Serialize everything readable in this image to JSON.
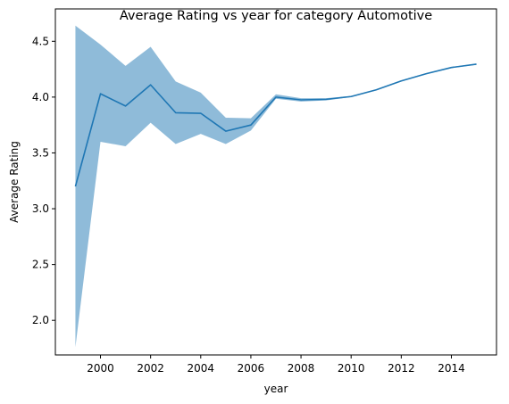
{
  "chart_data": {
    "type": "line",
    "title": "Average Rating vs year for category Automotive",
    "xlabel": "year",
    "ylabel": "Average Rating",
    "xlim": [
      1998.2,
      2015.8
    ],
    "ylim": [
      1.69,
      4.79
    ],
    "x_ticks": [
      2000,
      2002,
      2004,
      2006,
      2008,
      2010,
      2012,
      2014
    ],
    "y_ticks": [
      2.0,
      2.5,
      3.0,
      3.5,
      4.0,
      4.5
    ],
    "x_tick_labels": [
      "2000",
      "2002",
      "2004",
      "2006",
      "2008",
      "2010",
      "2012",
      "2014"
    ],
    "y_tick_labels": [
      "2.0",
      "2.5",
      "3.0",
      "3.5",
      "4.0",
      "4.5"
    ],
    "grid": false,
    "series": [
      {
        "x": [
          1999,
          2000,
          2001,
          2002,
          2003,
          2004,
          2005,
          2006,
          2007,
          2008,
          2009,
          2010,
          2011,
          2012,
          2013,
          2014,
          2015
        ],
        "values": [
          3.2,
          4.03,
          3.92,
          4.11,
          3.86,
          3.855,
          3.695,
          3.75,
          4.0,
          3.975,
          3.98,
          4.005,
          4.065,
          4.145,
          4.21,
          4.265,
          4.295
        ],
        "ci_lower": [
          1.76,
          3.6,
          3.56,
          3.77,
          3.58,
          3.67,
          3.58,
          3.7,
          3.985,
          3.96,
          3.97,
          4.0,
          4.06,
          4.14,
          4.205,
          4.26,
          4.29
        ],
        "ci_upper": [
          4.64,
          4.47,
          4.28,
          4.45,
          4.14,
          4.04,
          3.815,
          3.81,
          4.025,
          3.99,
          3.99,
          4.01,
          4.07,
          4.15,
          4.215,
          4.27,
          4.3
        ],
        "color": "#1f77b4",
        "band_color": "#1f77b4",
        "band_opacity": 0.5
      }
    ]
  }
}
